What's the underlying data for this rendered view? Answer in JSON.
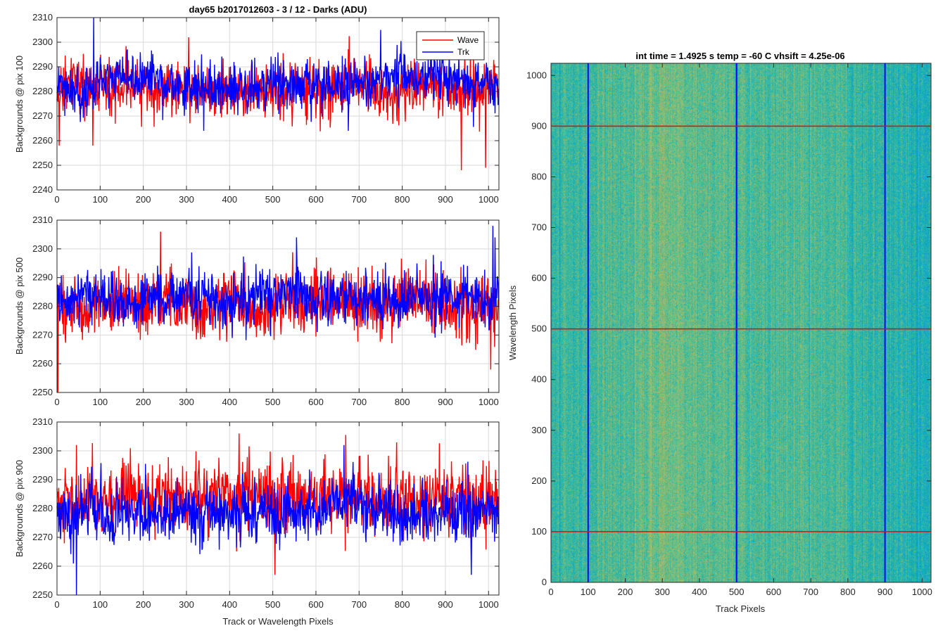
{
  "figure_title": "day65 b2017012603 - 3 / 12 - Darks (ADU)",
  "colors": {
    "wave": "#ff0000",
    "trk": "#0000ff",
    "grid": "#d9d9d9",
    "axis": "#262626"
  },
  "chart_data": [
    {
      "type": "line",
      "title": "day65 b2017012603 - 3 / 12 - Darks (ADU)",
      "xlabel": "",
      "ylabel": "Backgrounds @ pix 100",
      "xlim": [
        0,
        1024
      ],
      "ylim": [
        2240,
        2310
      ],
      "xticks": [
        0,
        100,
        200,
        300,
        400,
        500,
        600,
        700,
        800,
        900,
        1000
      ],
      "yticks": [
        2240,
        2250,
        2260,
        2270,
        2280,
        2290,
        2300,
        2310
      ],
      "grid": true,
      "legend": {
        "position": "top-right",
        "entries": [
          "Wave",
          "Trk"
        ]
      },
      "series": [
        {
          "name": "Wave",
          "color": "#ff0000",
          "points": 1024,
          "mean": 2281,
          "noise": 5.5,
          "features": [
            {
              "x": 5,
              "y": 2258
            },
            {
              "x": 83,
              "y": 2258
            },
            {
              "x": 937,
              "y": 2248
            },
            {
              "x": 993,
              "y": 2249
            },
            {
              "x": 305,
              "y": 2302
            }
          ]
        },
        {
          "name": "Trk",
          "color": "#0000ff",
          "points": 1024,
          "mean": 2283,
          "noise": 5,
          "features": [
            {
              "x": 85,
              "y": 2310
            },
            {
              "x": 340,
              "y": 2264
            },
            {
              "x": 675,
              "y": 2264
            },
            {
              "x": 750,
              "y": 2305
            }
          ]
        }
      ]
    },
    {
      "type": "line",
      "title": "",
      "xlabel": "",
      "ylabel": "Backgrounds @ pix 500",
      "xlim": [
        0,
        1024
      ],
      "ylim": [
        2250,
        2310
      ],
      "xticks": [
        0,
        100,
        200,
        300,
        400,
        500,
        600,
        700,
        800,
        900,
        1000
      ],
      "yticks": [
        2250,
        2260,
        2270,
        2280,
        2290,
        2300,
        2310
      ],
      "grid": true,
      "series": [
        {
          "name": "Wave",
          "color": "#ff0000",
          "points": 1024,
          "mean": 2281,
          "noise": 5.5,
          "features": [
            {
              "x": 2,
              "y": 2250
            },
            {
              "x": 240,
              "y": 2306
            },
            {
              "x": 1005,
              "y": 2258
            }
          ]
        },
        {
          "name": "Trk",
          "color": "#0000ff",
          "points": 1024,
          "mean": 2283,
          "noise": 4.5,
          "features": [
            {
              "x": 555,
              "y": 2304
            },
            {
              "x": 1010,
              "y": 2308
            },
            {
              "x": 1015,
              "y": 2304
            }
          ]
        }
      ]
    },
    {
      "type": "line",
      "title": "",
      "xlabel": "Track or Wavelength Pixels",
      "ylabel": "Backgrounds @ pix 900",
      "xlim": [
        0,
        1024
      ],
      "ylim": [
        2250,
        2310
      ],
      "xticks": [
        0,
        100,
        200,
        300,
        400,
        500,
        600,
        700,
        800,
        900,
        1000
      ],
      "yticks": [
        2250,
        2260,
        2270,
        2280,
        2290,
        2300,
        2310
      ],
      "grid": true,
      "series": [
        {
          "name": "Wave",
          "color": "#ff0000",
          "points": 1024,
          "mean": 2284,
          "noise": 6,
          "features": [
            {
              "x": 45,
              "y": 2302
            },
            {
              "x": 422,
              "y": 2306
            },
            {
              "x": 505,
              "y": 2257
            }
          ]
        },
        {
          "name": "Trk",
          "color": "#0000ff",
          "points": 1024,
          "mean": 2279,
          "noise": 5,
          "features": [
            {
              "x": 45,
              "y": 2250
            },
            {
              "x": 665,
              "y": 2302
            },
            {
              "x": 960,
              "y": 2257
            }
          ]
        }
      ]
    },
    {
      "type": "heatmap",
      "title": "int time = 1.4925 s    temp = -60 C    vhsift = 4.25e-06",
      "xlabel": "Track Pixels",
      "ylabel": "Wavelength Pixels",
      "xlim": [
        0,
        1024
      ],
      "ylim": [
        0,
        1024
      ],
      "xticks": [
        0,
        100,
        200,
        300,
        400,
        500,
        600,
        700,
        800,
        900,
        1000
      ],
      "yticks": [
        0,
        100,
        200,
        300,
        400,
        500,
        600,
        700,
        800,
        900,
        1000
      ],
      "colormap": "parula",
      "vertical_lines": {
        "x": [
          100,
          500,
          900
        ],
        "color": "#0000ff"
      },
      "horizontal_lines": {
        "y": [
          100,
          500,
          900
        ],
        "color": "#ff0000"
      }
    }
  ]
}
